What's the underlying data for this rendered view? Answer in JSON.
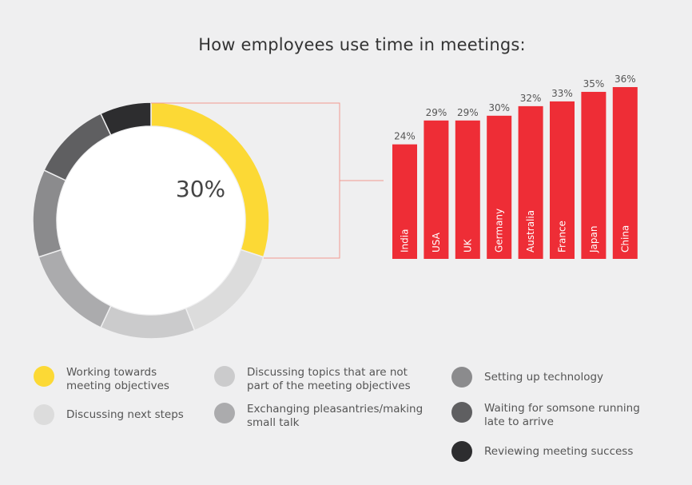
{
  "title": "How employees use time in meetings:",
  "chart_data": [
    {
      "type": "pie",
      "title": "",
      "center_label": "30%",
      "slices": [
        {
          "label": "Working towards meeting objectives",
          "value": 30,
          "value_label": "30%",
          "color": "#fcd935"
        },
        {
          "label": "Discussing next steps",
          "value": 14,
          "value_label": "14%",
          "color": "#dcdcdc"
        },
        {
          "label": "Discussing topics that are not part of the meeting objectives",
          "value": 13,
          "value_label": "13%",
          "color": "#cbcbcc"
        },
        {
          "label": "Exchanging pleasantries/making small talk",
          "value": 13,
          "value_label": "13%",
          "color": "#ababad"
        },
        {
          "label": "Setting up technology",
          "value": 12,
          "value_label": "12%",
          "color": "#8b8b8d"
        },
        {
          "label": "Waiting for somsone running late to arrive",
          "value": 11,
          "value_label": "11%",
          "color": "#5f5f61"
        },
        {
          "label": "Reviewing meeting success",
          "value": 7,
          "value_label": "7%",
          "color": "#2d2d2f"
        }
      ]
    },
    {
      "type": "bar",
      "title": "",
      "categories": [
        "India",
        "USA",
        "UK",
        "Germany",
        "Australia",
        "France",
        "Japan",
        "China"
      ],
      "values": [
        24,
        29,
        29,
        30,
        32,
        33,
        35,
        36
      ],
      "value_labels": [
        "24%",
        "29%",
        "29%",
        "30%",
        "32%",
        "33%",
        "35%",
        "36%"
      ],
      "color": "#ee2d36",
      "xlabel": "",
      "ylabel": "",
      "ylim": [
        0,
        36
      ]
    }
  ],
  "legend": [
    {
      "label": "Working towards\nmeeting objectives",
      "color": "#fcd935"
    },
    {
      "label": "Discussing next steps",
      "color": "#dcdcdc"
    },
    {
      "label": "Discussing topics that are not\npart of the meeting objectives",
      "color": "#cbcbcc"
    },
    {
      "label": "Exchanging pleasantries/making\nsmall talk",
      "color": "#ababad"
    },
    {
      "label": "Setting up technology",
      "color": "#8b8b8d"
    },
    {
      "label": "Waiting for somsone running\nlate to arrive",
      "color": "#5f5f61"
    },
    {
      "label": "Reviewing meeting success",
      "color": "#2d2d2f"
    }
  ],
  "connector_color": "#f29a8f"
}
